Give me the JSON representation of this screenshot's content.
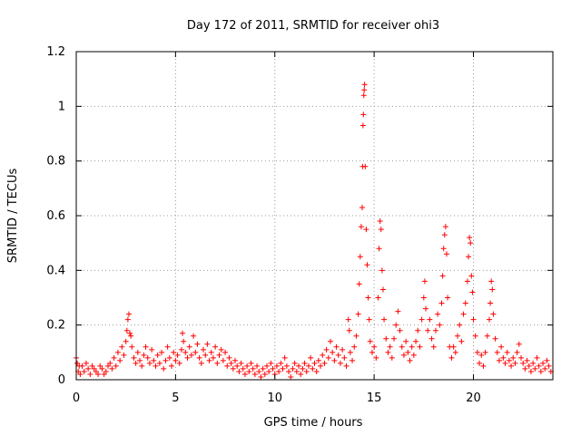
{
  "chart_data": {
    "type": "scatter",
    "title": "Day 172 of 2011, SRMTID for receiver ohi3",
    "xlabel": "GPS time / hours",
    "ylabel": "SRMTID / TECUs",
    "xlim": [
      0,
      24
    ],
    "ylim": [
      0,
      1.2
    ],
    "xticks": [
      0,
      5,
      10,
      15,
      20
    ],
    "xtick_labels": [
      "0",
      "5",
      "10",
      "15",
      "20"
    ],
    "yticks": [
      0,
      0.2,
      0.4,
      0.6,
      0.8,
      1.0,
      1.2
    ],
    "ytick_labels": [
      "0",
      "0.2",
      "0.4",
      "0.6",
      "0.8",
      "1",
      "1.2"
    ],
    "grid": true,
    "marker": "+",
    "series": [
      {
        "name": "SRMTID",
        "color": "#ff0000",
        "points": [
          [
            0.0,
            0.08
          ],
          [
            0.05,
            0.06
          ],
          [
            0.1,
            0.03
          ],
          [
            0.15,
            0.05
          ],
          [
            0.2,
            0.02
          ],
          [
            0.3,
            0.05
          ],
          [
            0.4,
            0.03
          ],
          [
            0.5,
            0.06
          ],
          [
            0.6,
            0.04
          ],
          [
            0.7,
            0.02
          ],
          [
            0.8,
            0.05
          ],
          [
            0.9,
            0.04
          ],
          [
            1.0,
            0.03
          ],
          [
            1.1,
            0.02
          ],
          [
            1.2,
            0.05
          ],
          [
            1.3,
            0.04
          ],
          [
            1.4,
            0.02
          ],
          [
            1.5,
            0.03
          ],
          [
            1.6,
            0.05
          ],
          [
            1.7,
            0.06
          ],
          [
            1.8,
            0.04
          ],
          [
            1.9,
            0.08
          ],
          [
            2.0,
            0.05
          ],
          [
            2.1,
            0.1
          ],
          [
            2.2,
            0.07
          ],
          [
            2.3,
            0.12
          ],
          [
            2.4,
            0.09
          ],
          [
            2.5,
            0.14
          ],
          [
            2.55,
            0.18
          ],
          [
            2.6,
            0.22
          ],
          [
            2.65,
            0.24
          ],
          [
            2.7,
            0.17
          ],
          [
            2.75,
            0.16
          ],
          [
            2.8,
            0.12
          ],
          [
            2.9,
            0.08
          ],
          [
            3.0,
            0.06
          ],
          [
            3.1,
            0.1
          ],
          [
            3.2,
            0.07
          ],
          [
            3.3,
            0.05
          ],
          [
            3.4,
            0.09
          ],
          [
            3.5,
            0.12
          ],
          [
            3.6,
            0.08
          ],
          [
            3.7,
            0.06
          ],
          [
            3.8,
            0.11
          ],
          [
            3.9,
            0.07
          ],
          [
            4.0,
            0.05
          ],
          [
            4.1,
            0.09
          ],
          [
            4.2,
            0.06
          ],
          [
            4.3,
            0.1
          ],
          [
            4.4,
            0.04
          ],
          [
            4.5,
            0.07
          ],
          [
            4.6,
            0.12
          ],
          [
            4.7,
            0.08
          ],
          [
            4.8,
            0.05
          ],
          [
            4.9,
            0.1
          ],
          [
            5.0,
            0.07
          ],
          [
            5.1,
            0.09
          ],
          [
            5.2,
            0.06
          ],
          [
            5.3,
            0.11
          ],
          [
            5.35,
            0.17
          ],
          [
            5.4,
            0.14
          ],
          [
            5.5,
            0.1
          ],
          [
            5.6,
            0.08
          ],
          [
            5.7,
            0.12
          ],
          [
            5.8,
            0.09
          ],
          [
            5.9,
            0.16
          ],
          [
            6.0,
            0.1
          ],
          [
            6.1,
            0.13
          ],
          [
            6.2,
            0.08
          ],
          [
            6.3,
            0.06
          ],
          [
            6.4,
            0.11
          ],
          [
            6.5,
            0.09
          ],
          [
            6.6,
            0.13
          ],
          [
            6.7,
            0.07
          ],
          [
            6.8,
            0.1
          ],
          [
            6.9,
            0.08
          ],
          [
            7.0,
            0.12
          ],
          [
            7.1,
            0.06
          ],
          [
            7.2,
            0.09
          ],
          [
            7.3,
            0.11
          ],
          [
            7.4,
            0.07
          ],
          [
            7.5,
            0.1
          ],
          [
            7.6,
            0.05
          ],
          [
            7.7,
            0.08
          ],
          [
            7.8,
            0.06
          ],
          [
            7.9,
            0.04
          ],
          [
            8.0,
            0.07
          ],
          [
            8.1,
            0.05
          ],
          [
            8.2,
            0.03
          ],
          [
            8.3,
            0.06
          ],
          [
            8.4,
            0.04
          ],
          [
            8.5,
            0.02
          ],
          [
            8.6,
            0.05
          ],
          [
            8.7,
            0.03
          ],
          [
            8.8,
            0.06
          ],
          [
            8.9,
            0.04
          ],
          [
            9.0,
            0.02
          ],
          [
            9.1,
            0.05
          ],
          [
            9.2,
            0.03
          ],
          [
            9.3,
            0.01
          ],
          [
            9.4,
            0.04
          ],
          [
            9.5,
            0.02
          ],
          [
            9.6,
            0.05
          ],
          [
            9.7,
            0.03
          ],
          [
            9.8,
            0.06
          ],
          [
            9.9,
            0.04
          ],
          [
            10.0,
            0.02
          ],
          [
            10.1,
            0.05
          ],
          [
            10.2,
            0.03
          ],
          [
            10.3,
            0.06
          ],
          [
            10.4,
            0.04
          ],
          [
            10.5,
            0.08
          ],
          [
            10.6,
            0.05
          ],
          [
            10.7,
            0.03
          ],
          [
            10.8,
            0.01
          ],
          [
            10.9,
            0.04
          ],
          [
            11.0,
            0.06
          ],
          [
            11.1,
            0.03
          ],
          [
            11.2,
            0.05
          ],
          [
            11.3,
            0.02
          ],
          [
            11.4,
            0.04
          ],
          [
            11.5,
            0.06
          ],
          [
            11.6,
            0.03
          ],
          [
            11.7,
            0.05
          ],
          [
            11.8,
            0.08
          ],
          [
            11.9,
            0.04
          ],
          [
            12.0,
            0.06
          ],
          [
            12.1,
            0.03
          ],
          [
            12.2,
            0.07
          ],
          [
            12.3,
            0.05
          ],
          [
            12.4,
            0.09
          ],
          [
            12.5,
            0.06
          ],
          [
            12.6,
            0.11
          ],
          [
            12.7,
            0.08
          ],
          [
            12.8,
            0.14
          ],
          [
            12.9,
            0.1
          ],
          [
            13.0,
            0.07
          ],
          [
            13.1,
            0.12
          ],
          [
            13.2,
            0.09
          ],
          [
            13.3,
            0.06
          ],
          [
            13.4,
            0.11
          ],
          [
            13.5,
            0.08
          ],
          [
            13.6,
            0.05
          ],
          [
            13.7,
            0.22
          ],
          [
            13.75,
            0.18
          ],
          [
            13.8,
            0.1
          ],
          [
            13.9,
            0.07
          ],
          [
            14.0,
            0.12
          ],
          [
            14.1,
            0.16
          ],
          [
            14.2,
            0.24
          ],
          [
            14.25,
            0.35
          ],
          [
            14.3,
            0.45
          ],
          [
            14.35,
            0.56
          ],
          [
            14.4,
            0.63
          ],
          [
            14.42,
            0.78
          ],
          [
            14.44,
            0.93
          ],
          [
            14.46,
            0.97
          ],
          [
            14.48,
            1.04
          ],
          [
            14.5,
            1.06
          ],
          [
            14.52,
            1.08
          ],
          [
            14.55,
            0.78
          ],
          [
            14.6,
            0.55
          ],
          [
            14.65,
            0.42
          ],
          [
            14.7,
            0.3
          ],
          [
            14.75,
            0.22
          ],
          [
            14.8,
            0.14
          ],
          [
            14.9,
            0.1
          ],
          [
            15.0,
            0.12
          ],
          [
            15.1,
            0.08
          ],
          [
            15.2,
            0.3
          ],
          [
            15.25,
            0.48
          ],
          [
            15.3,
            0.58
          ],
          [
            15.35,
            0.55
          ],
          [
            15.4,
            0.4
          ],
          [
            15.45,
            0.33
          ],
          [
            15.5,
            0.22
          ],
          [
            15.6,
            0.15
          ],
          [
            15.7,
            0.1
          ],
          [
            15.8,
            0.12
          ],
          [
            15.9,
            0.08
          ],
          [
            16.0,
            0.15
          ],
          [
            16.1,
            0.2
          ],
          [
            16.2,
            0.25
          ],
          [
            16.3,
            0.18
          ],
          [
            16.4,
            0.12
          ],
          [
            16.5,
            0.09
          ],
          [
            16.6,
            0.14
          ],
          [
            16.7,
            0.1
          ],
          [
            16.8,
            0.07
          ],
          [
            16.9,
            0.12
          ],
          [
            17.0,
            0.09
          ],
          [
            17.1,
            0.14
          ],
          [
            17.2,
            0.18
          ],
          [
            17.3,
            0.12
          ],
          [
            17.4,
            0.22
          ],
          [
            17.5,
            0.3
          ],
          [
            17.55,
            0.36
          ],
          [
            17.6,
            0.26
          ],
          [
            17.7,
            0.18
          ],
          [
            17.8,
            0.22
          ],
          [
            17.9,
            0.15
          ],
          [
            18.0,
            0.12
          ],
          [
            18.1,
            0.18
          ],
          [
            18.2,
            0.24
          ],
          [
            18.3,
            0.2
          ],
          [
            18.4,
            0.28
          ],
          [
            18.45,
            0.38
          ],
          [
            18.5,
            0.48
          ],
          [
            18.55,
            0.53
          ],
          [
            18.6,
            0.56
          ],
          [
            18.65,
            0.46
          ],
          [
            18.7,
            0.3
          ],
          [
            18.8,
            0.12
          ],
          [
            18.9,
            0.08
          ],
          [
            19.0,
            0.12
          ],
          [
            19.1,
            0.1
          ],
          [
            19.2,
            0.16
          ],
          [
            19.3,
            0.2
          ],
          [
            19.4,
            0.14
          ],
          [
            19.5,
            0.24
          ],
          [
            19.6,
            0.28
          ],
          [
            19.7,
            0.36
          ],
          [
            19.75,
            0.45
          ],
          [
            19.8,
            0.52
          ],
          [
            19.85,
            0.5
          ],
          [
            19.9,
            0.38
          ],
          [
            19.95,
            0.32
          ],
          [
            20.0,
            0.22
          ],
          [
            20.1,
            0.16
          ],
          [
            20.2,
            0.1
          ],
          [
            20.3,
            0.06
          ],
          [
            20.4,
            0.09
          ],
          [
            20.5,
            0.05
          ],
          [
            20.6,
            0.1
          ],
          [
            20.7,
            0.16
          ],
          [
            20.8,
            0.22
          ],
          [
            20.85,
            0.28
          ],
          [
            20.9,
            0.36
          ],
          [
            20.95,
            0.33
          ],
          [
            21.0,
            0.24
          ],
          [
            21.1,
            0.15
          ],
          [
            21.2,
            0.1
          ],
          [
            21.3,
            0.07
          ],
          [
            21.4,
            0.12
          ],
          [
            21.5,
            0.08
          ],
          [
            21.6,
            0.06
          ],
          [
            21.7,
            0.1
          ],
          [
            21.8,
            0.07
          ],
          [
            21.9,
            0.05
          ],
          [
            22.0,
            0.08
          ],
          [
            22.1,
            0.06
          ],
          [
            22.2,
            0.1
          ],
          [
            22.3,
            0.13
          ],
          [
            22.4,
            0.08
          ],
          [
            22.5,
            0.06
          ],
          [
            22.6,
            0.04
          ],
          [
            22.7,
            0.07
          ],
          [
            22.8,
            0.05
          ],
          [
            22.9,
            0.03
          ],
          [
            23.0,
            0.06
          ],
          [
            23.1,
            0.04
          ],
          [
            23.2,
            0.08
          ],
          [
            23.3,
            0.05
          ],
          [
            23.4,
            0.03
          ],
          [
            23.5,
            0.06
          ],
          [
            23.6,
            0.04
          ],
          [
            23.7,
            0.07
          ],
          [
            23.8,
            0.05
          ],
          [
            23.9,
            0.03
          ]
        ]
      }
    ]
  }
}
